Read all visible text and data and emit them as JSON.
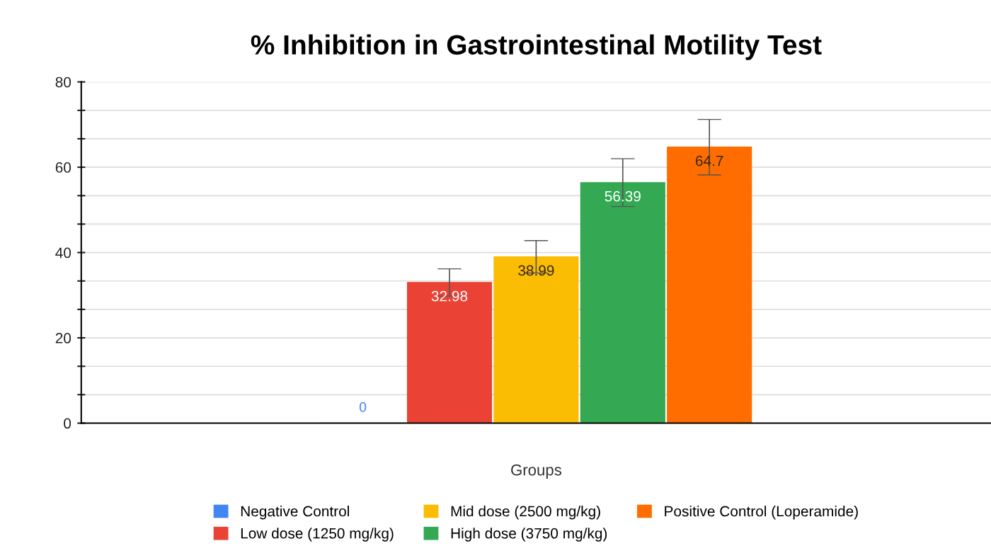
{
  "chart_data": {
    "type": "bar",
    "title": "% Inhibition in Gastrointestinal Motility Test",
    "xlabel": "Groups",
    "categories": [
      null
    ],
    "series": [
      {
        "name": "Negative Control",
        "color": "#4285f4",
        "values": [
          0
        ],
        "errors": [
          null
        ]
      },
      {
        "name": "Low dose (1250 mg/kg)",
        "color": "#ea4335",
        "values": [
          32.98
        ],
        "errors": [
          3.2
        ]
      },
      {
        "name": "Mid dose (2500 mg/kg)",
        "color": "#fbbc04",
        "values": [
          38.99
        ],
        "errors": [
          3.8
        ]
      },
      {
        "name": "High dose (3750 mg/kg)",
        "color": "#34a853",
        "values": [
          56.39
        ],
        "errors": [
          5.6
        ]
      },
      {
        "name": "Positive Control (Loperamide)",
        "color": "#ff6d01",
        "values": [
          64.7
        ],
        "errors": [
          6.5
        ]
      }
    ],
    "ylim": [
      0,
      80
    ],
    "yticks": [
      0,
      {
        "value": 6.67,
        "label": null
      },
      {
        "value": 13.33,
        "label": null
      },
      20,
      {
        "value": 26.67,
        "label": null
      },
      {
        "value": 33.33,
        "label": null
      },
      40,
      {
        "value": 46.67,
        "label": null
      },
      {
        "value": 53.33,
        "label": null
      },
      60,
      {
        "value": 66.67,
        "label": null
      },
      {
        "value": 73.33,
        "label": null
      },
      80
    ],
    "grid": "y",
    "legend": "bottom",
    "data_labels": true
  }
}
